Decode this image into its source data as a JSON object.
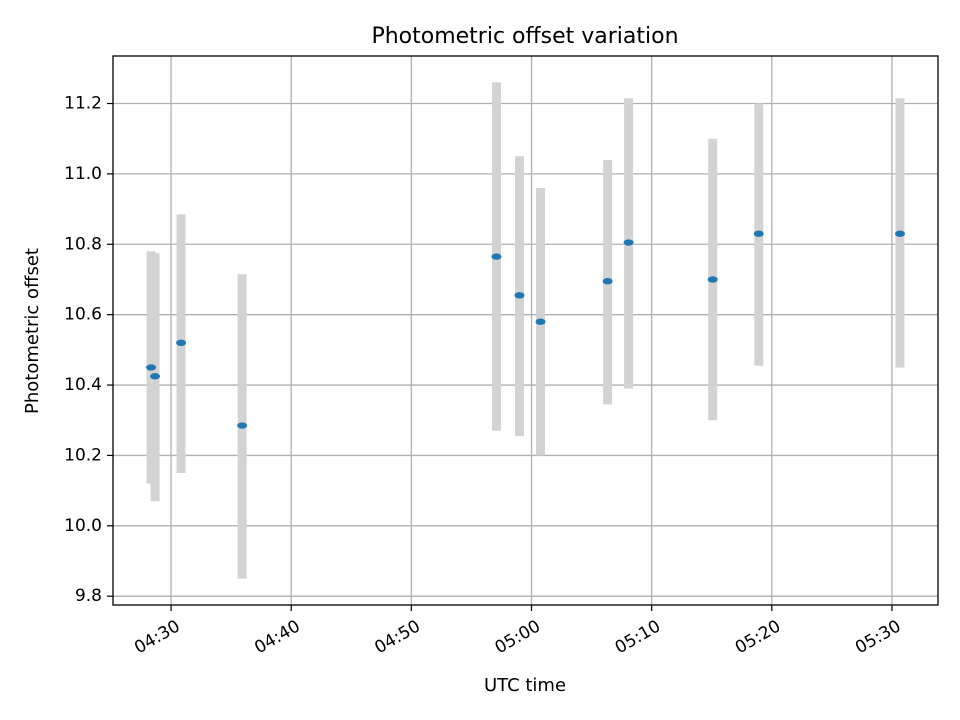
{
  "chart_data": {
    "type": "scatter",
    "title": "Photometric offset variation",
    "xlabel": "UTC time",
    "ylabel": "Photometric offset",
    "xlim": [
      "04:25:10",
      "05:33:50"
    ],
    "ylim": [
      9.775,
      11.335
    ],
    "grid": true,
    "x_ticks": [
      "04:30",
      "04:40",
      "04:50",
      "05:00",
      "05:10",
      "05:20",
      "05:30"
    ],
    "y_ticks": [
      "9.8",
      "10.0",
      "10.2",
      "10.4",
      "10.6",
      "10.8",
      "11.0",
      "11.2"
    ],
    "colors": {
      "point": "#1f77b4",
      "error_bar": "#d3d3d3",
      "grid": "#b0b0b0"
    },
    "series": [
      {
        "points": [
          {
            "x": "04:28:20",
            "y": 10.45,
            "ylow": 10.12,
            "yhigh": 10.78
          },
          {
            "x": "04:28:40",
            "y": 10.425,
            "ylow": 10.07,
            "yhigh": 10.775
          },
          {
            "x": "04:30:50",
            "y": 10.52,
            "ylow": 10.15,
            "yhigh": 10.885
          },
          {
            "x": "04:35:55",
            "y": 10.285,
            "ylow": 9.85,
            "yhigh": 10.715
          },
          {
            "x": "04:57:05",
            "y": 10.765,
            "ylow": 10.27,
            "yhigh": 11.26
          },
          {
            "x": "04:59:00",
            "y": 10.655,
            "ylow": 10.255,
            "yhigh": 11.05
          },
          {
            "x": "05:00:45",
            "y": 10.58,
            "ylow": 10.2,
            "yhigh": 10.96
          },
          {
            "x": "05:06:20",
            "y": 10.695,
            "ylow": 10.345,
            "yhigh": 11.04
          },
          {
            "x": "05:08:05",
            "y": 10.805,
            "ylow": 10.39,
            "yhigh": 11.215
          },
          {
            "x": "05:15:05",
            "y": 10.7,
            "ylow": 10.3,
            "yhigh": 11.1
          },
          {
            "x": "05:18:55",
            "y": 10.83,
            "ylow": 10.455,
            "yhigh": 11.2
          },
          {
            "x": "05:30:40",
            "y": 10.83,
            "ylow": 10.45,
            "yhigh": 11.215
          }
        ]
      }
    ]
  }
}
